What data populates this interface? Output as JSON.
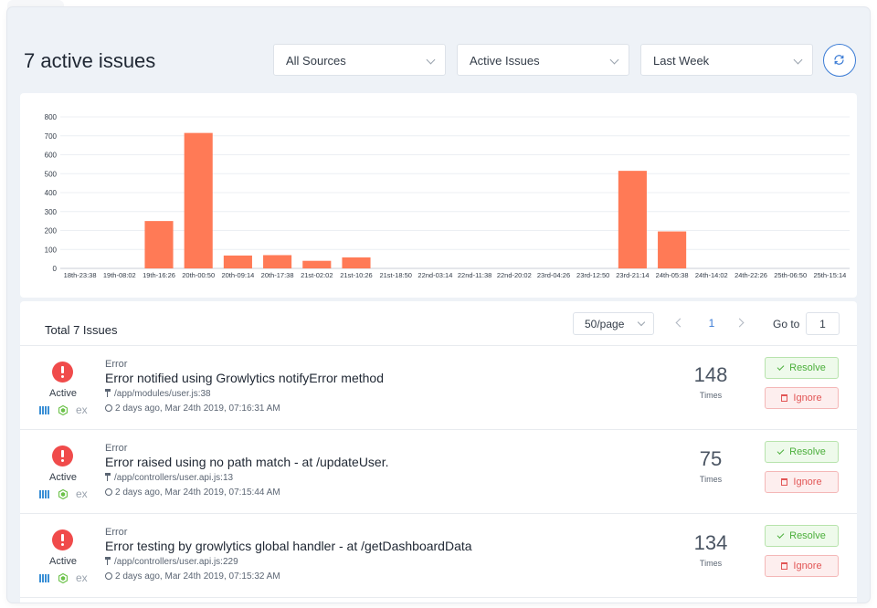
{
  "header": {
    "title": "7 active issues",
    "filters": [
      {
        "label": "All Sources"
      },
      {
        "label": "Active Issues"
      },
      {
        "label": "Last Week"
      }
    ]
  },
  "chart_data": {
    "type": "bar",
    "categories": [
      "18th-23:38",
      "19th-08:02",
      "19th-16:26",
      "20th-00:50",
      "20th-09:14",
      "20th-17:38",
      "21st-02:02",
      "21st-10:26",
      "21st-18:50",
      "22nd-03:14",
      "22nd-11:38",
      "22nd-20:02",
      "23rd-04:26",
      "23rd-12:50",
      "23rd-21:14",
      "24th-05:38",
      "24th-14:02",
      "24th-22:26",
      "25th-06:50",
      "25th-15:14"
    ],
    "values": [
      0,
      0,
      250,
      715,
      68,
      70,
      40,
      58,
      0,
      0,
      0,
      0,
      0,
      0,
      515,
      195,
      0,
      0,
      0,
      0
    ],
    "yticks": [
      0,
      100,
      200,
      300,
      400,
      500,
      600,
      700,
      800
    ],
    "ylim": [
      0,
      800
    ],
    "color": "#ff7a56",
    "grid": true
  },
  "list": {
    "total_label": "Total 7 Issues",
    "per_page": "50/page",
    "current_page": "1",
    "goto_label": "Go to",
    "goto_value": "1",
    "issues": [
      {
        "status": "Active",
        "type": "Error",
        "title": "Error notified using Growlytics notifyError method",
        "path": "/app/modules/user.js:38",
        "time": "2 days ago, Mar 24th 2019, 07:16:31 AM",
        "count": "148",
        "count_label": "Times",
        "source_ex": "ex",
        "resolve": "Resolve",
        "ignore": "Ignore"
      },
      {
        "status": "Active",
        "type": "Error",
        "title": "Error raised using no path match - at /updateUser.",
        "path": "/app/controllers/user.api.js:13",
        "time": "2 days ago, Mar 24th 2019, 07:15:44 AM",
        "count": "75",
        "count_label": "Times",
        "source_ex": "ex",
        "resolve": "Resolve",
        "ignore": "Ignore"
      },
      {
        "status": "Active",
        "type": "Error",
        "title": "Error testing by growlytics global handler - at /getDashboardData",
        "path": "/app/controllers/user.api.js:229",
        "time": "2 days ago, Mar 24th 2019, 07:15:32 AM",
        "count": "134",
        "count_label": "Times",
        "source_ex": "ex",
        "resolve": "Resolve",
        "ignore": "Ignore"
      }
    ]
  }
}
